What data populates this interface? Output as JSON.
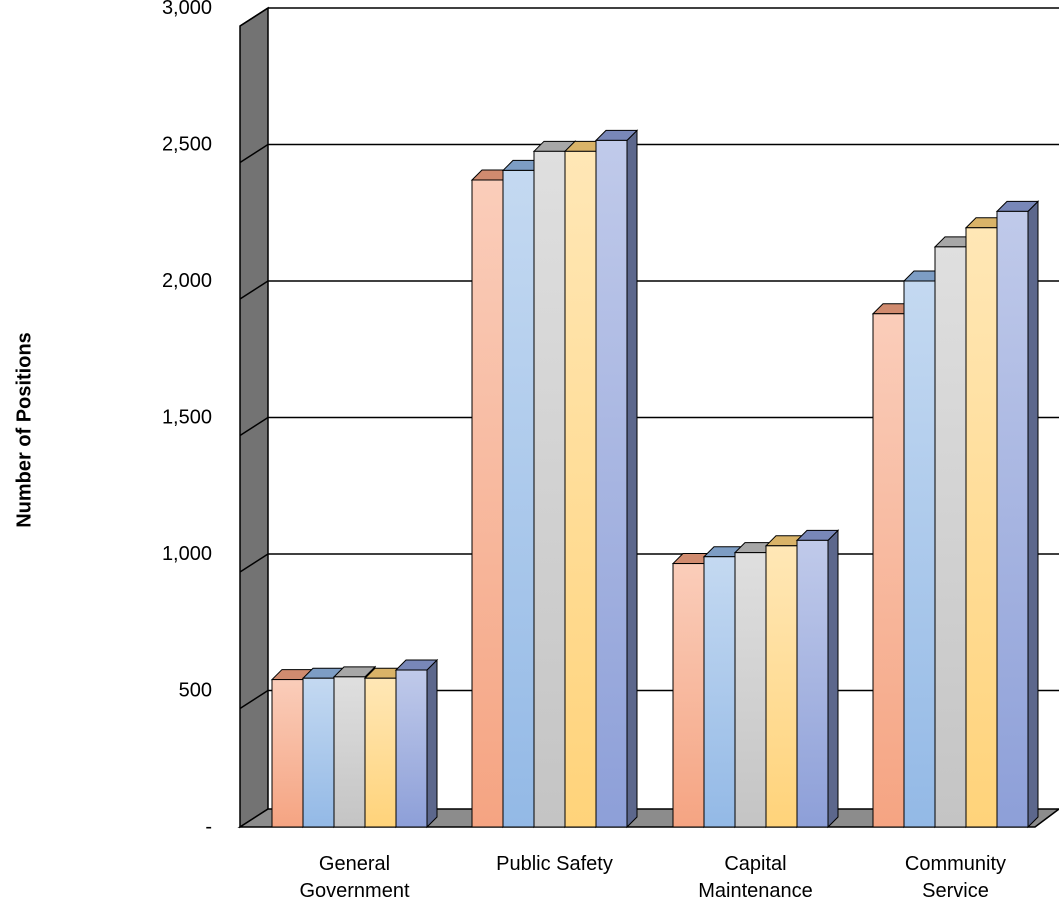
{
  "chart_data": {
    "type": "bar",
    "title": "",
    "xlabel": "",
    "ylabel": "Number of Positions",
    "ylim": [
      0,
      3000
    ],
    "yticks": [
      {
        "value": 0,
        "label": "-"
      },
      {
        "value": 500,
        "label": "500"
      },
      {
        "value": 1000,
        "label": "1,000"
      },
      {
        "value": 1500,
        "label": "1,500"
      },
      {
        "value": 2000,
        "label": "2,000"
      },
      {
        "value": 2500,
        "label": "2,500"
      },
      {
        "value": 3000,
        "label": "3,000"
      }
    ],
    "grid": true,
    "three_d": true,
    "categories": [
      [
        "General",
        "Government"
      ],
      [
        "Public Safety"
      ],
      [
        "Capital",
        "Maintenance"
      ],
      [
        "Community",
        "Service"
      ]
    ],
    "series": [
      {
        "color": "#f5a482",
        "values": [
          540,
          2370,
          965,
          1880
        ]
      },
      {
        "color": "#93b9e6",
        "values": [
          545,
          2405,
          990,
          2000
        ]
      },
      {
        "color": "#c4c4c4",
        "values": [
          550,
          2475,
          1005,
          2125
        ]
      },
      {
        "color": "#ffd37a",
        "values": [
          545,
          2475,
          1030,
          2195
        ]
      },
      {
        "color": "#8d9fd8",
        "values": [
          575,
          2515,
          1050,
          2255
        ]
      }
    ]
  }
}
